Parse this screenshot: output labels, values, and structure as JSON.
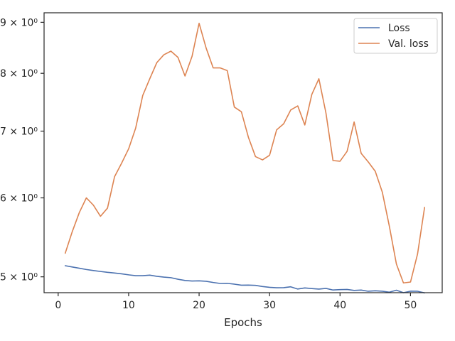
{
  "chart_data": {
    "type": "line",
    "title": "",
    "xlabel": "Epochs",
    "ylabel": "",
    "yscale": "log",
    "grid": false,
    "legend_placement": "top-right",
    "xlim": [
      -2,
      54.5
    ],
    "ylim": [
      4.82,
      9.2
    ],
    "xticks": [
      0,
      10,
      20,
      30,
      40,
      50
    ],
    "xtick_labels": [
      "0",
      "10",
      "20",
      "30",
      "40",
      "50"
    ],
    "yticks": [
      5,
      6,
      7,
      8,
      9
    ],
    "ytick_labels": [
      "5 × 10⁰",
      "6 × 10⁰",
      "7 × 10⁰",
      "8 × 10⁰",
      "9 × 10⁰"
    ],
    "x": [
      1,
      2,
      3,
      4,
      5,
      6,
      7,
      8,
      9,
      10,
      11,
      12,
      13,
      14,
      15,
      16,
      17,
      18,
      19,
      20,
      21,
      22,
      23,
      24,
      25,
      26,
      27,
      28,
      29,
      30,
      31,
      32,
      33,
      34,
      35,
      36,
      37,
      38,
      39,
      40,
      41,
      42,
      43,
      44,
      45,
      46,
      47,
      48,
      49,
      50,
      51,
      52
    ],
    "series": [
      {
        "name": "Loss",
        "color": "#4c72b0",
        "values": [
          5.13,
          5.115,
          5.1,
          5.085,
          5.073,
          5.062,
          5.052,
          5.044,
          5.035,
          5.023,
          5.013,
          5.013,
          5.019,
          5.006,
          4.997,
          4.99,
          4.972,
          4.958,
          4.952,
          4.954,
          4.949,
          4.935,
          4.924,
          4.925,
          4.916,
          4.904,
          4.905,
          4.902,
          4.889,
          4.88,
          4.875,
          4.876,
          4.886,
          4.861,
          4.873,
          4.866,
          4.86,
          4.868,
          4.85,
          4.854,
          4.856,
          4.845,
          4.849,
          4.836,
          4.841,
          4.836,
          4.826,
          4.848,
          4.82,
          4.837,
          4.836,
          4.818
        ]
      },
      {
        "name": "Val. loss",
        "color": "#dd8452",
        "values": [
          5.28,
          5.55,
          5.8,
          6.0,
          5.9,
          5.75,
          5.86,
          6.3,
          6.5,
          6.72,
          7.05,
          7.6,
          7.9,
          8.2,
          8.35,
          8.42,
          8.3,
          7.95,
          8.32,
          8.98,
          8.48,
          8.1,
          8.1,
          8.05,
          7.4,
          7.32,
          6.9,
          6.6,
          6.55,
          6.62,
          7.02,
          7.12,
          7.35,
          7.42,
          7.1,
          7.62,
          7.9,
          7.3,
          6.54,
          6.53,
          6.68,
          7.15,
          6.65,
          6.52,
          6.38,
          6.08,
          5.62,
          5.15,
          4.93,
          4.94,
          5.27,
          5.87
        ]
      }
    ]
  }
}
